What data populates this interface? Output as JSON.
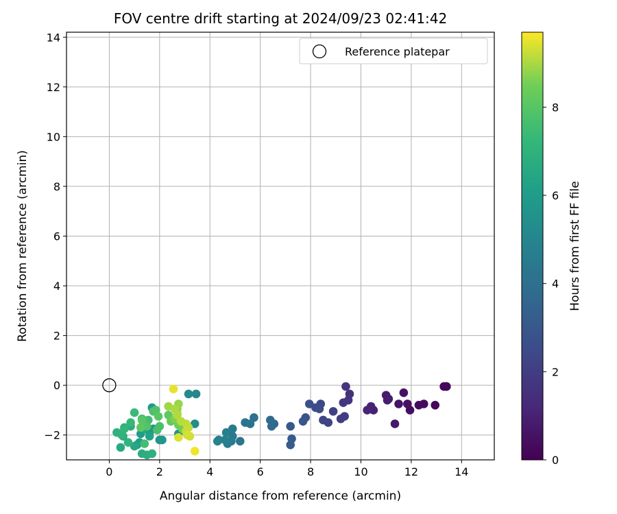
{
  "chart_data": {
    "type": "scatter",
    "title": "FOV centre drift starting at 2024/09/23 02:41:42",
    "xlabel": "Angular distance from reference (arcmin)",
    "ylabel": "Rotation from reference (arcmin)",
    "xlim": [
      -1.7,
      15.3
    ],
    "ylim": [
      -3.0,
      14.2
    ],
    "xticks": [
      0,
      2,
      4,
      6,
      8,
      10,
      12,
      14
    ],
    "yticks": [
      -2,
      0,
      2,
      4,
      6,
      8,
      10,
      12,
      14
    ],
    "grid": true,
    "legend": {
      "position": "top-right",
      "entries": [
        "Reference platepar"
      ]
    },
    "reference_point": {
      "name": "Reference platepar",
      "x": 0,
      "y": 0
    },
    "colorbar": {
      "label": "Hours from first FF file",
      "colormap": "viridis",
      "min": 0,
      "max": 9.7,
      "ticks": [
        0,
        2,
        4,
        6,
        8
      ]
    },
    "series": [
      {
        "points": [
          [
            13.4,
            -0.05,
            0.05
          ],
          [
            13.3,
            -0.05,
            0.1
          ],
          [
            13.4,
            -0.05,
            0.15
          ],
          [
            12.95,
            -0.8,
            0.2
          ],
          [
            12.5,
            -0.75,
            0.3
          ],
          [
            12.3,
            -0.8,
            0.35
          ],
          [
            11.95,
            -1.0,
            0.4
          ],
          [
            11.85,
            -0.75,
            0.5
          ],
          [
            11.7,
            -0.3,
            0.55
          ],
          [
            11.5,
            -0.75,
            0.6
          ],
          [
            11.35,
            -1.55,
            0.7
          ],
          [
            11.1,
            -0.55,
            0.75
          ],
          [
            11.0,
            -0.4,
            0.8
          ],
          [
            11.05,
            -0.6,
            0.9
          ],
          [
            10.5,
            -1.0,
            1.0
          ],
          [
            10.4,
            -0.85,
            1.05
          ],
          [
            10.25,
            -1.0,
            1.15
          ],
          [
            9.55,
            -0.35,
            1.5
          ],
          [
            9.4,
            -0.05,
            1.6
          ],
          [
            9.5,
            -0.6,
            1.7
          ],
          [
            9.3,
            -0.7,
            1.8
          ],
          [
            9.35,
            -1.25,
            1.9
          ],
          [
            9.2,
            -1.35,
            2.0
          ],
          [
            8.9,
            -1.05,
            2.1
          ],
          [
            8.7,
            -1.5,
            2.2
          ],
          [
            8.5,
            -1.4,
            2.3
          ],
          [
            8.4,
            -0.75,
            2.4
          ],
          [
            8.35,
            -0.95,
            2.5
          ],
          [
            8.2,
            -0.9,
            2.6
          ],
          [
            7.95,
            -0.75,
            2.7
          ],
          [
            7.8,
            -1.3,
            2.8
          ],
          [
            7.7,
            -1.45,
            2.9
          ],
          [
            7.2,
            -1.65,
            3.0
          ],
          [
            7.25,
            -2.15,
            3.1
          ],
          [
            7.2,
            -2.4,
            3.2
          ],
          [
            6.55,
            -1.55,
            3.6
          ],
          [
            6.45,
            -1.65,
            3.7
          ],
          [
            6.4,
            -1.4,
            3.8
          ],
          [
            5.75,
            -1.3,
            4.0
          ],
          [
            5.6,
            -1.55,
            4.1
          ],
          [
            5.4,
            -1.5,
            4.2
          ],
          [
            5.2,
            -2.25,
            4.3
          ],
          [
            4.9,
            -2.05,
            4.4
          ],
          [
            4.9,
            -1.75,
            4.5
          ],
          [
            4.85,
            -2.25,
            4.55
          ],
          [
            4.7,
            -2.35,
            4.6
          ],
          [
            4.65,
            -1.9,
            4.7
          ],
          [
            4.6,
            -2.2,
            4.75
          ],
          [
            4.35,
            -2.2,
            4.8
          ],
          [
            4.3,
            -2.25,
            4.85
          ],
          [
            3.45,
            -0.35,
            5.1
          ],
          [
            3.15,
            -0.35,
            5.2
          ],
          [
            3.4,
            -1.55,
            5.3
          ],
          [
            3.1,
            -1.7,
            5.4
          ],
          [
            2.9,
            -1.8,
            5.5
          ],
          [
            2.75,
            -1.95,
            5.6
          ],
          [
            2.0,
            -2.2,
            5.7
          ],
          [
            2.1,
            -2.2,
            5.75
          ],
          [
            1.75,
            -1.75,
            5.8
          ],
          [
            1.6,
            -1.9,
            5.85
          ],
          [
            1.7,
            -0.9,
            5.9
          ],
          [
            1.45,
            -1.5,
            5.95
          ],
          [
            1.25,
            -1.95,
            6.0
          ],
          [
            1.1,
            -2.4,
            6.05
          ],
          [
            1.2,
            -2.3,
            6.1
          ],
          [
            1.6,
            -2.05,
            6.3
          ],
          [
            1.4,
            -1.75,
            6.4
          ],
          [
            1.0,
            -2.45,
            6.5
          ],
          [
            0.55,
            -2.05,
            6.55
          ],
          [
            0.45,
            -2.5,
            6.6
          ],
          [
            0.85,
            -1.65,
            6.7
          ],
          [
            1.3,
            -2.75,
            6.8
          ],
          [
            1.5,
            -2.8,
            6.85
          ],
          [
            1.7,
            -2.75,
            6.9
          ],
          [
            0.6,
            -1.7,
            6.95
          ],
          [
            0.3,
            -1.9,
            7.0
          ],
          [
            0.5,
            -2.0,
            7.05
          ],
          [
            0.75,
            -2.3,
            7.1
          ],
          [
            0.6,
            -1.75,
            7.2
          ],
          [
            0.85,
            -1.5,
            7.3
          ],
          [
            1.0,
            -1.1,
            7.4
          ],
          [
            1.3,
            -1.35,
            7.5
          ],
          [
            1.55,
            -1.4,
            7.55
          ],
          [
            1.4,
            -2.35,
            7.6
          ],
          [
            1.9,
            -1.8,
            7.7
          ],
          [
            2.0,
            -1.65,
            7.75
          ],
          [
            1.75,
            -1.05,
            7.8
          ],
          [
            1.85,
            -1.0,
            7.85
          ],
          [
            1.5,
            -1.65,
            7.9
          ],
          [
            1.3,
            -1.4,
            8.0
          ],
          [
            1.95,
            -1.25,
            8.05
          ],
          [
            1.25,
            -1.7,
            8.1
          ],
          [
            2.35,
            -1.2,
            8.15
          ],
          [
            2.45,
            -1.45,
            8.3
          ],
          [
            2.75,
            -1.6,
            8.4
          ],
          [
            2.9,
            -1.75,
            8.5
          ],
          [
            2.6,
            -1.35,
            8.6
          ],
          [
            2.7,
            -1.15,
            8.7
          ],
          [
            2.7,
            -0.95,
            8.8
          ],
          [
            2.75,
            -0.75,
            8.85
          ],
          [
            2.35,
            -0.85,
            8.9
          ],
          [
            2.6,
            -0.95,
            9.0
          ],
          [
            2.7,
            -1.2,
            9.05
          ],
          [
            2.85,
            -1.45,
            9.1
          ],
          [
            3.05,
            -1.55,
            9.15
          ],
          [
            3.15,
            -1.7,
            9.2
          ],
          [
            3.05,
            -1.85,
            9.25
          ],
          [
            3.2,
            -2.05,
            9.3
          ],
          [
            3.1,
            -2.0,
            9.35
          ],
          [
            2.75,
            -2.1,
            9.4
          ],
          [
            2.55,
            -0.15,
            9.5
          ],
          [
            3.4,
            -2.65,
            9.6
          ]
        ]
      }
    ]
  }
}
